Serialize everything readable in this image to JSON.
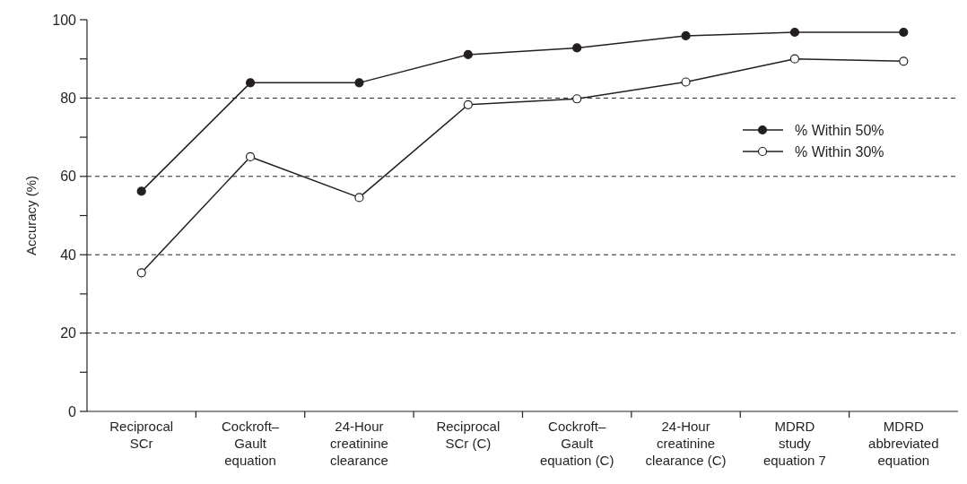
{
  "chart_data": {
    "type": "line",
    "ylabel": "Accuracy (%)",
    "categories": [
      "Reciprocal\nSCr",
      "Cockroft–\nGault\nequation",
      "24-Hour\ncreatinine\nclearance",
      "Reciprocal\nSCr (C)",
      "Cockroft–\nGault\nequation (C)",
      "24-Hour\ncreatinine\nclearance (C)",
      "MDRD\nstudy\nequation 7",
      "MDRD\nabbreviated\nequation"
    ],
    "series": [
      {
        "name": "% Within 50%",
        "color": "#231f20",
        "values": [
          56.2,
          83.9,
          83.9,
          91.1,
          92.8,
          95.9,
          96.8,
          96.8
        ]
      },
      {
        "name": "% Within 30%",
        "color": "#231f20",
        "values": [
          35.4,
          65.0,
          54.6,
          78.3,
          79.8,
          84.1,
          90.0,
          89.4
        ]
      }
    ],
    "ylim": [
      0,
      100
    ],
    "yticks": [
      0,
      {
        "value": 10,
        "label": null
      },
      20,
      {
        "value": 30,
        "label": null
      },
      40,
      {
        "value": 50,
        "label": null
      },
      60,
      {
        "value": 70,
        "label": null
      },
      80,
      {
        "value": 90,
        "label": null
      },
      100
    ],
    "grid": "y",
    "legend": "top right",
    "marker": "circle",
    "line_style": "solid"
  }
}
